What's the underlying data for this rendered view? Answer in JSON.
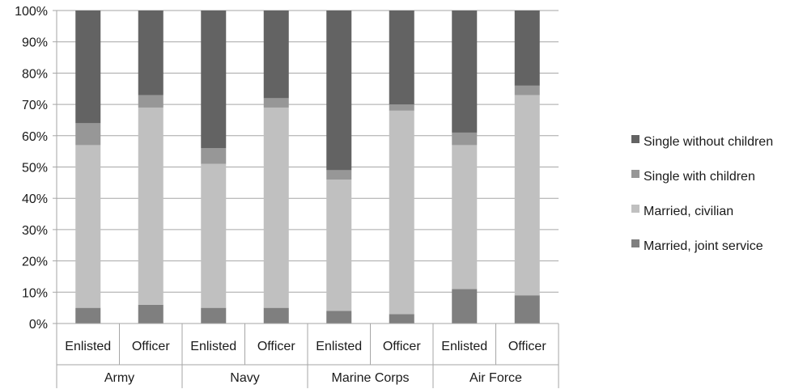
{
  "chart_data": {
    "type": "bar",
    "stacked": true,
    "percent": true,
    "title": "",
    "xlabel": "",
    "ylabel": "",
    "ylim": [
      0,
      100
    ],
    "y_ticks": [
      "0%",
      "10%",
      "20%",
      "30%",
      "40%",
      "50%",
      "60%",
      "70%",
      "80%",
      "90%",
      "100%"
    ],
    "grid": true,
    "legend_position": "right",
    "categories": [
      "Enlisted",
      "Officer",
      "Enlisted",
      "Officer",
      "Enlisted",
      "Officer",
      "Enlisted",
      "Officer"
    ],
    "groups": [
      {
        "label": "Army",
        "span": 2
      },
      {
        "label": "Navy",
        "span": 2
      },
      {
        "label": "Marine Corps",
        "span": 2
      },
      {
        "label": "Air Force",
        "span": 2
      }
    ],
    "series": [
      {
        "name": "Married, joint service",
        "color": "#7f7f7f",
        "values": [
          5,
          6,
          5,
          5,
          4,
          3,
          11,
          9
        ]
      },
      {
        "name": "Married, civilian",
        "color": "#c0c0c0",
        "values": [
          52,
          63,
          46,
          64,
          42,
          65,
          46,
          64
        ]
      },
      {
        "name": "Single with children",
        "color": "#979797",
        "values": [
          7,
          4,
          5,
          3,
          3,
          2,
          4,
          3
        ]
      },
      {
        "name": "Single without children",
        "color": "#636363",
        "values": [
          36,
          27,
          44,
          28,
          51,
          30,
          39,
          24
        ]
      }
    ]
  }
}
